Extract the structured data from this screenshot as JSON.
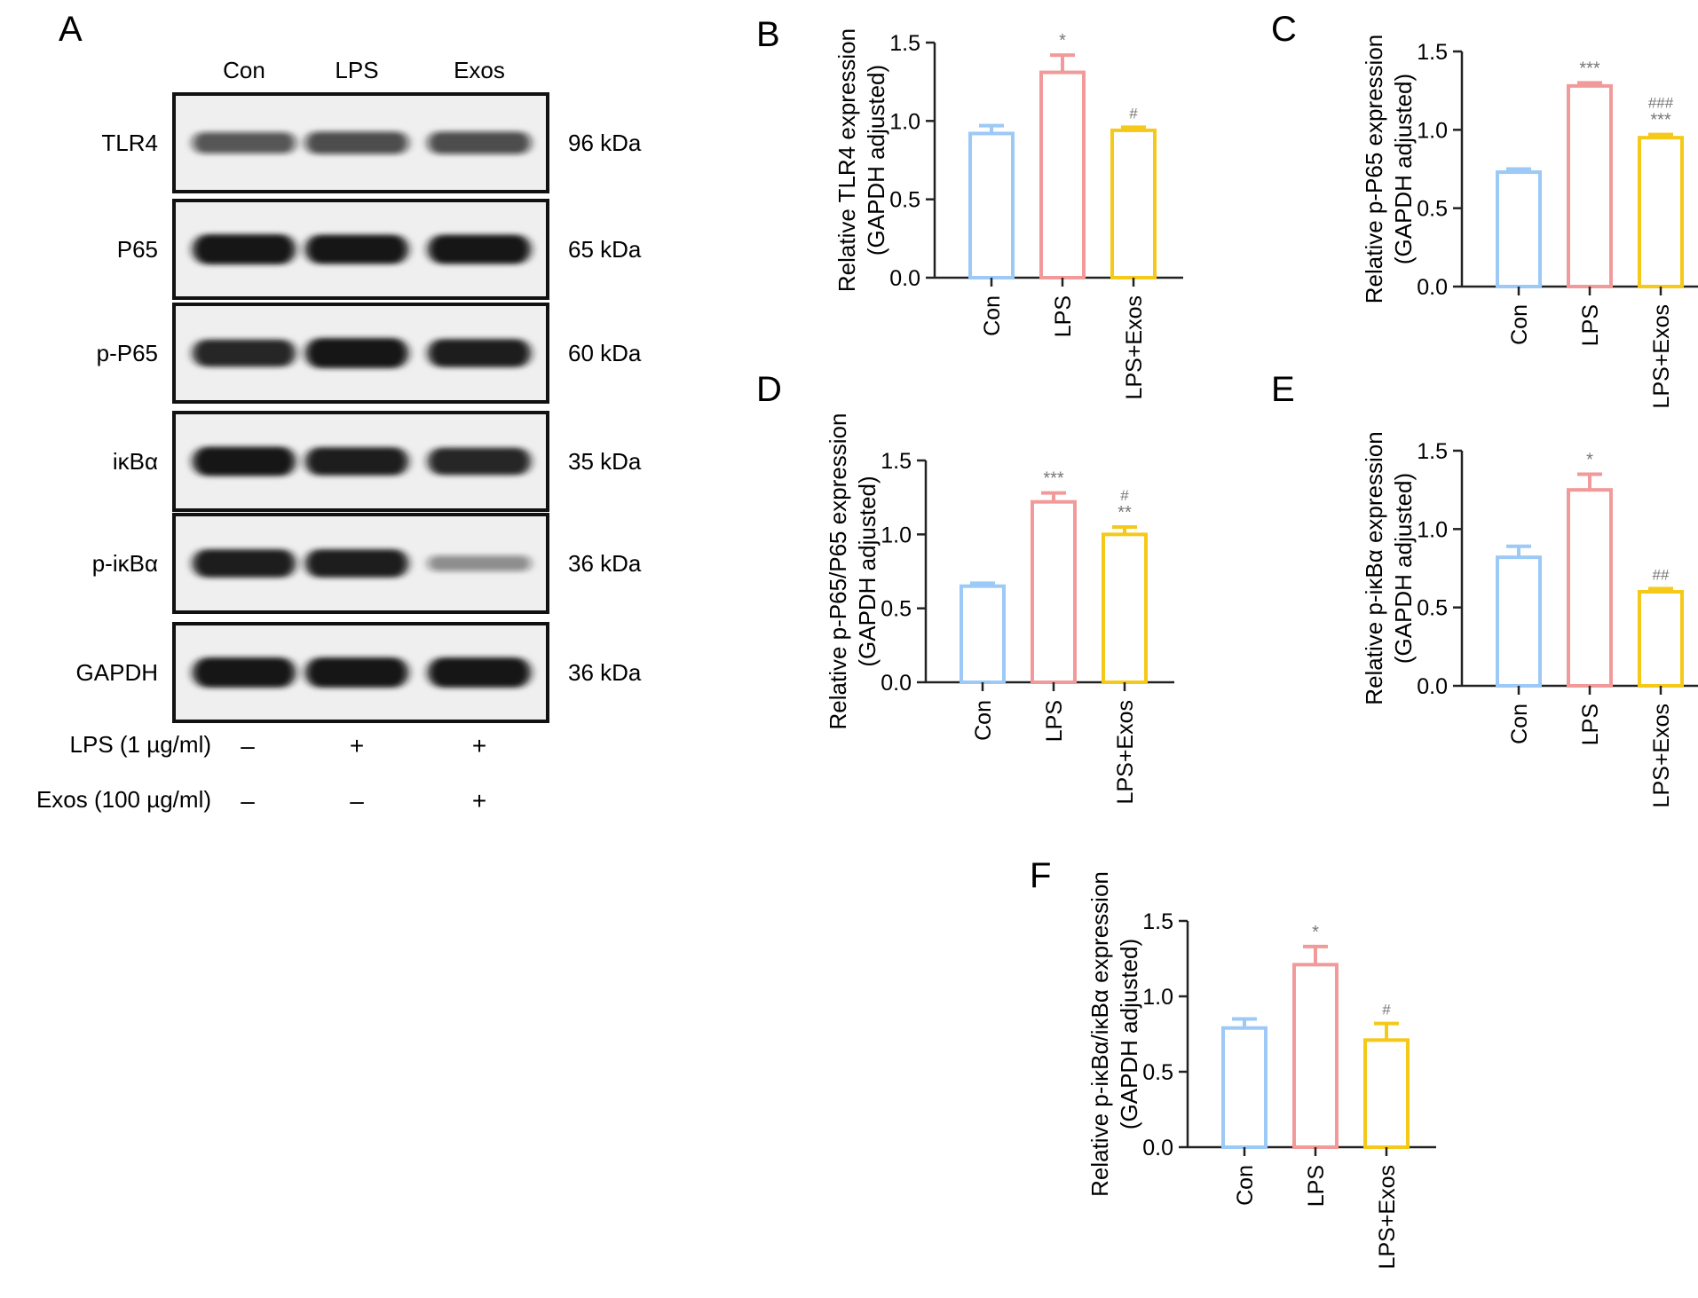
{
  "colors": {
    "Con": "#9cc9f5",
    "LPS": "#f29a9a",
    "LPS+Exos": "#f5c91a",
    "axis": "#222222",
    "star": "#777777",
    "blot_bg": "#efefef",
    "band": "#141414"
  },
  "blot": {
    "panel_letter": "A",
    "lanes": [
      "Con",
      "LPS",
      "Exos"
    ],
    "rows": [
      {
        "name": "TLR4",
        "size": "96 kDa",
        "intensity": [
          0.55,
          0.6,
          0.6
        ]
      },
      {
        "name": "P65",
        "size": "65 kDa",
        "intensity": [
          1.0,
          0.95,
          0.95
        ]
      },
      {
        "name": "p-P65",
        "size": "60 kDa",
        "intensity": [
          0.85,
          1.0,
          0.9
        ]
      },
      {
        "name": "iκBα",
        "size": "35 kDa",
        "intensity": [
          0.95,
          0.9,
          0.85
        ]
      },
      {
        "name": "p-iκBα",
        "size": "36 kDa",
        "intensity": [
          0.9,
          0.9,
          0.25
        ]
      },
      {
        "name": "GAPDH",
        "size": "36 kDa",
        "intensity": [
          1.0,
          1.0,
          1.0
        ]
      }
    ],
    "treatments": [
      {
        "label": "LPS (1 µg/ml)",
        "signs": [
          "–",
          "+",
          "+"
        ]
      },
      {
        "label": "Exos (100 µg/ml)",
        "signs": [
          "–",
          "–",
          "+"
        ]
      }
    ]
  },
  "chart_data": [
    {
      "panel": "B",
      "type": "bar",
      "categories": [
        "Con",
        "LPS",
        "LPS+Exos"
      ],
      "values": [
        0.92,
        1.31,
        0.94
      ],
      "errors": [
        0.05,
        0.11,
        0.02
      ],
      "annotations": [
        [],
        [
          "*"
        ],
        [
          "#"
        ]
      ],
      "ylabel": [
        "Relative TLR4 expression",
        "(GAPDH adjusted)"
      ],
      "ylim": [
        0,
        1.5
      ],
      "yticks": [
        "0.0",
        "0.5",
        "1.0",
        "1.5"
      ]
    },
    {
      "panel": "C",
      "type": "bar",
      "categories": [
        "Con",
        "LPS",
        "LPS+Exos"
      ],
      "values": [
        0.73,
        1.28,
        0.95
      ],
      "errors": [
        0.02,
        0.02,
        0.02
      ],
      "annotations": [
        [],
        [
          "***"
        ],
        [
          "###",
          "***"
        ]
      ],
      "ylabel": [
        "Relative p-P65 expression",
        "(GAPDH adjusted)"
      ],
      "ylim": [
        0,
        1.5
      ],
      "yticks": [
        "0.0",
        "0.5",
        "1.0",
        "1.5"
      ]
    },
    {
      "panel": "D",
      "type": "bar",
      "categories": [
        "Con",
        "LPS",
        "LPS+Exos"
      ],
      "values": [
        0.65,
        1.22,
        1.0
      ],
      "errors": [
        0.02,
        0.06,
        0.05
      ],
      "annotations": [
        [],
        [
          "***"
        ],
        [
          "#",
          "**"
        ]
      ],
      "ylabel": [
        "Relative p-P65/P65 expression",
        "(GAPDH adjusted)"
      ],
      "ylim": [
        0,
        1.5
      ],
      "yticks": [
        "0.0",
        "0.5",
        "1.0",
        "1.5"
      ]
    },
    {
      "panel": "E",
      "type": "bar",
      "categories": [
        "Con",
        "LPS",
        "LPS+Exos"
      ],
      "values": [
        0.82,
        1.25,
        0.6
      ],
      "errors": [
        0.07,
        0.1,
        0.02
      ],
      "annotations": [
        [],
        [
          "*"
        ],
        [
          "##"
        ]
      ],
      "ylabel": [
        "Relative p-iκBα expression",
        "(GAPDH adjusted)"
      ],
      "ylim": [
        0,
        1.5
      ],
      "yticks": [
        "0.0",
        "0.5",
        "1.0",
        "1.5"
      ]
    },
    {
      "panel": "F",
      "type": "bar",
      "categories": [
        "Con",
        "LPS",
        "LPS+Exos"
      ],
      "values": [
        0.79,
        1.21,
        0.71
      ],
      "errors": [
        0.06,
        0.12,
        0.11
      ],
      "annotations": [
        [],
        [
          "*"
        ],
        [
          "#"
        ]
      ],
      "ylabel": [
        "Relative p-iκBα/iκBα expression",
        "(GAPDH adjusted)"
      ],
      "ylim": [
        0,
        1.5
      ],
      "yticks": [
        "0.0",
        "0.5",
        "1.0",
        "1.5"
      ]
    }
  ]
}
